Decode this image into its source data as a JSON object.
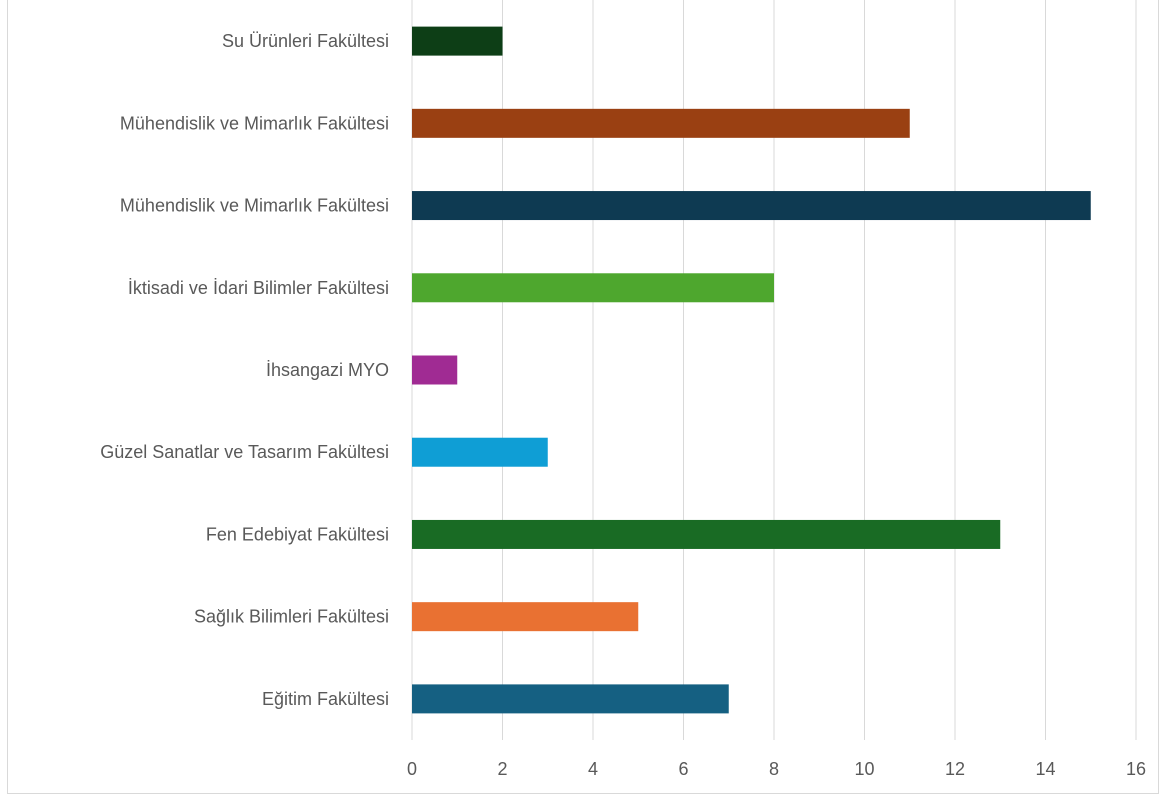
{
  "chart_data": {
    "type": "bar",
    "orientation": "horizontal",
    "title": "",
    "xlabel": "",
    "ylabel": "",
    "categories": [
      "Eğitim Fakültesi",
      "Sağlık Bilimleri Fakültesi",
      "Fen Edebiyat Fakültesi",
      "Güzel Sanatlar ve Tasarım Fakültesi",
      "İhsangazi MYO",
      "İktisadi ve İdari Bilimler Fakültesi",
      "Mühendislik ve Mimarlık Fakültesi",
      "Mühendislik ve Mimarlık Fakültesi",
      "Su Ürünleri Fakültesi"
    ],
    "values": [
      7,
      5,
      13,
      3,
      1,
      8,
      15,
      11,
      2
    ],
    "colors": [
      "#156082",
      "#e97132",
      "#196b24",
      "#0f9ed5",
      "#a02b93",
      "#4ea72e",
      "#0e3a52",
      "#9a4012",
      "#0d3e16"
    ],
    "xlim": [
      0,
      16
    ],
    "ticks": [
      "0",
      "2",
      "4",
      "6",
      "8",
      "10",
      "12",
      "14",
      "16"
    ],
    "grid": true,
    "gridline_color": "#d9d9d9"
  }
}
